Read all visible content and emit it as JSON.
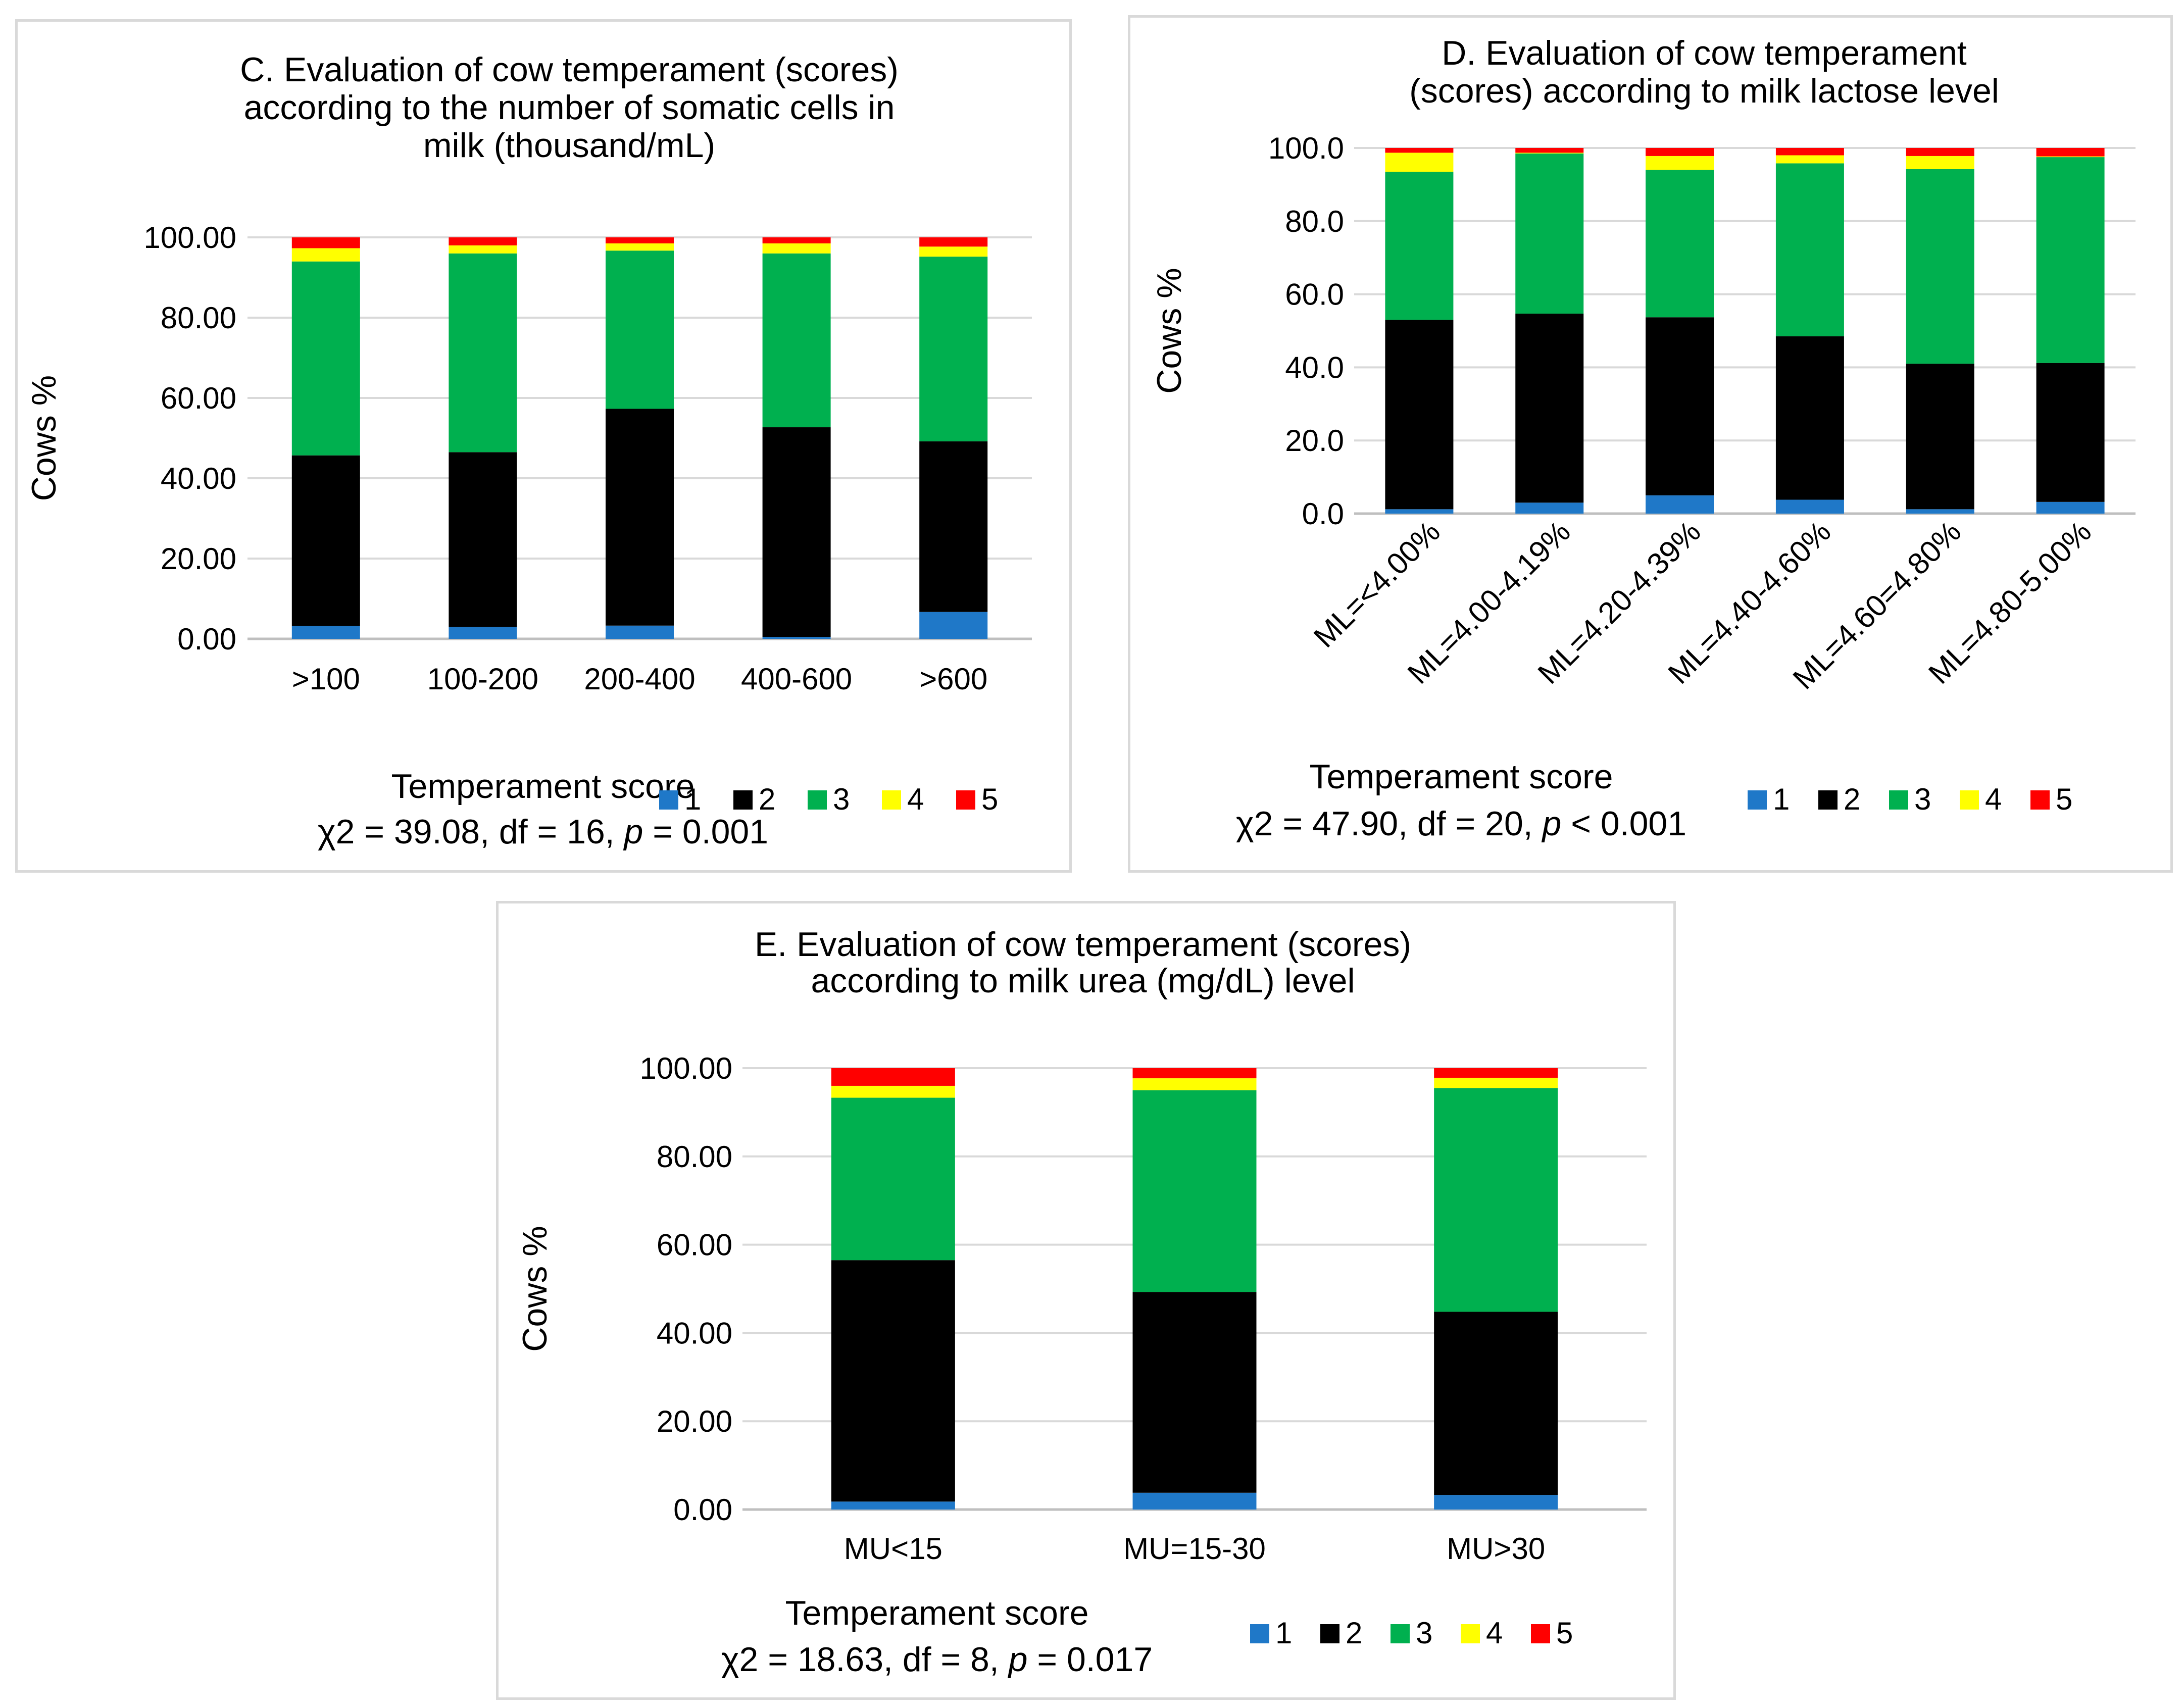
{
  "colors": {
    "score1": "#1f78c8",
    "score2": "#000000",
    "score3": "#00b04f",
    "score4": "#ffff00",
    "score5": "#ff0000",
    "grid": "#d9d9d9",
    "axis": "#bfbfbf"
  },
  "chart_data": [
    {
      "id": "c",
      "type": "bar",
      "stacked": true,
      "title_lines": [
        "C. Evaluation of cow temperament (scores)",
        "according to the number of somatic cells in",
        "milk (thousand/mL)"
      ],
      "ylabel": "Cows %",
      "ylim": [
        0,
        100
      ],
      "yticks": [
        "0.00",
        "20.00",
        "40.00",
        "60.00",
        "80.00",
        "100.00"
      ],
      "categories": [
        ">100",
        "100-200",
        "200-400",
        "400-600",
        ">600"
      ],
      "series": [
        {
          "name": "1",
          "values": [
            3.2,
            3.0,
            3.3,
            0.5,
            6.7
          ]
        },
        {
          "name": "2",
          "values": [
            42.5,
            43.5,
            54.0,
            52.2,
            42.5
          ]
        },
        {
          "name": "3",
          "values": [
            48.3,
            49.5,
            39.4,
            43.3,
            46.0
          ]
        },
        {
          "name": "4",
          "values": [
            3.3,
            2.0,
            1.8,
            2.5,
            2.5
          ]
        },
        {
          "name": "5",
          "values": [
            2.7,
            2.0,
            1.5,
            1.5,
            2.3
          ]
        }
      ],
      "legend_title": "Temperament score",
      "stat_text": [
        "χ2 = 39.08, df = 16, ",
        "p",
        " = 0.001"
      ]
    },
    {
      "id": "d",
      "type": "bar",
      "stacked": true,
      "title_lines": [
        "D. Evaluation of cow temperament",
        "(scores) according to milk lactose level"
      ],
      "ylabel": "Cows %",
      "ylim": [
        0,
        100
      ],
      "yticks": [
        "0.0",
        "20.0",
        "40.0",
        "60.0",
        "80.0",
        "100.0"
      ],
      "categories": [
        "ML=<4.00%",
        "ML=4.00-4.19%",
        "ML=4.20-4.39%",
        "ML=4.40-4.60%",
        "ML=4.60=4.80%",
        "ML=4.80-5.00%"
      ],
      "series": [
        {
          "name": "1",
          "values": [
            1.2,
            3.0,
            5.0,
            3.8,
            1.2,
            3.2
          ]
        },
        {
          "name": "2",
          "values": [
            51.8,
            51.7,
            48.7,
            44.7,
            39.8,
            38.0
          ]
        },
        {
          "name": "3",
          "values": [
            40.5,
            43.8,
            40.3,
            47.3,
            53.2,
            56.3
          ]
        },
        {
          "name": "4",
          "values": [
            5.2,
            0.2,
            3.8,
            2.2,
            3.6,
            0.2
          ]
        },
        {
          "name": "5",
          "values": [
            1.3,
            1.3,
            2.2,
            2.0,
            2.2,
            2.3
          ]
        }
      ],
      "legend_title": "Temperament score",
      "stat_text": [
        "χ2 = 47.90, df = 20, ",
        "p",
        " < 0.001"
      ]
    },
    {
      "id": "e",
      "type": "bar",
      "stacked": true,
      "title_lines": [
        "E. Evaluation of cow temperament (scores)",
        "according to milk urea (mg/dL) level"
      ],
      "ylabel": "Cows %",
      "ylim": [
        0,
        100
      ],
      "yticks": [
        "0.00",
        "20.00",
        "40.00",
        "60.00",
        "80.00",
        "100.00"
      ],
      "categories": [
        "MU<15",
        "MU=15-30",
        "MU>30"
      ],
      "series": [
        {
          "name": "1",
          "values": [
            1.8,
            3.8,
            3.3
          ]
        },
        {
          "name": "2",
          "values": [
            54.7,
            45.5,
            41.5
          ]
        },
        {
          "name": "3",
          "values": [
            36.8,
            45.7,
            50.7
          ]
        },
        {
          "name": "4",
          "values": [
            2.7,
            2.7,
            2.3
          ]
        },
        {
          "name": "5",
          "values": [
            4.0,
            2.3,
            2.2
          ]
        }
      ],
      "legend_title": "Temperament score",
      "stat_text": [
        "χ2 = 18.63, df = 8, ",
        "p",
        " = 0.017"
      ]
    }
  ]
}
